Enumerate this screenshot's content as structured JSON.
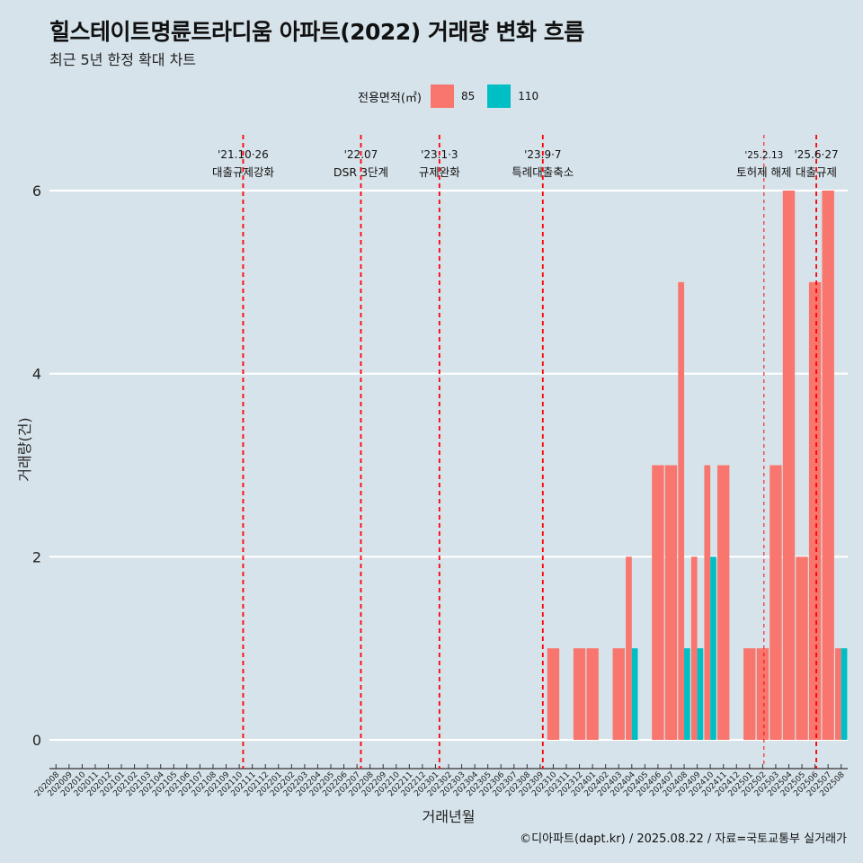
{
  "title": "힐스테이트명륜트라디움 아파트(2022) 거래량 변화 흐름",
  "subtitle": "최근 5년 한정 확대 차트",
  "legend": {
    "title": "전용면적(㎡)",
    "items": [
      {
        "label": "85",
        "color": "#f8766d"
      },
      {
        "label": "110",
        "color": "#00bfc4"
      }
    ]
  },
  "footer": "©디아파트(dapt.kr) / 2025.08.22 / 자료=국토교통부 실거래가",
  "chart_data": {
    "type": "bar",
    "xlabel": "거래년월",
    "ylabel": "거래량(건)",
    "ylim": [
      0,
      6.3
    ],
    "yticks": [
      0,
      2,
      4,
      6
    ],
    "grid": true,
    "legend_position": "top",
    "categories": [
      "202008",
      "202009",
      "202010",
      "202011",
      "202012",
      "202101",
      "202102",
      "202103",
      "202104",
      "202105",
      "202106",
      "202107",
      "202108",
      "202109",
      "202110",
      "202111",
      "202112",
      "202201",
      "202202",
      "202203",
      "202204",
      "202205",
      "202206",
      "202207",
      "202208",
      "202209",
      "202210",
      "202211",
      "202212",
      "202301",
      "202302",
      "202303",
      "202304",
      "202305",
      "202306",
      "202307",
      "202308",
      "202309",
      "202310",
      "202311",
      "202312",
      "202401",
      "202402",
      "202403",
      "202404",
      "202405",
      "202406",
      "202407",
      "202408",
      "202409",
      "202410",
      "202411",
      "202412",
      "202501",
      "202502",
      "202503",
      "202504",
      "202505",
      "202506",
      "202507",
      "202508"
    ],
    "series": [
      {
        "name": "85",
        "color": "#f8766d",
        "values": [
          0,
          0,
          0,
          0,
          0,
          0,
          0,
          0,
          0,
          0,
          0,
          0,
          0,
          0,
          0,
          0,
          0,
          0,
          0,
          0,
          0,
          0,
          0,
          0,
          0,
          0,
          0,
          0,
          0,
          0,
          0,
          0,
          0,
          0,
          0,
          0,
          0,
          0,
          1,
          0,
          1,
          1,
          0,
          1,
          2,
          0,
          3,
          3,
          5,
          2,
          3,
          3,
          0,
          1,
          1,
          3,
          6,
          2,
          5,
          6,
          1
        ]
      },
      {
        "name": "110",
        "color": "#00bfc4",
        "values": [
          0,
          0,
          0,
          0,
          0,
          0,
          0,
          0,
          0,
          0,
          0,
          0,
          0,
          0,
          0,
          0,
          0,
          0,
          0,
          0,
          0,
          0,
          0,
          0,
          0,
          0,
          0,
          0,
          0,
          0,
          0,
          0,
          0,
          0,
          0,
          0,
          0,
          0,
          0,
          0,
          0,
          0,
          0,
          0,
          1,
          0,
          0,
          0,
          1,
          1,
          2,
          0,
          0,
          0,
          0,
          0,
          0,
          0,
          0,
          0,
          1
        ]
      }
    ],
    "annotations": [
      {
        "date": "'21.10·26",
        "label": "대출규제강화",
        "at_index": 14.8,
        "style": "bold"
      },
      {
        "date": "'22.07",
        "label": "DSR 3단계",
        "at_index": 23.8,
        "style": "bold"
      },
      {
        "date": "'23.1·3",
        "label": "규제완화",
        "at_index": 29.8,
        "style": "bold"
      },
      {
        "date": "'23.9·7",
        "label": "특례대출축소",
        "at_index": 37.7,
        "style": "bold"
      },
      {
        "date": "'25.2.13",
        "label": "토허제 해제",
        "at_index": 54.6,
        "style": "thin"
      },
      {
        "date": "'25.6·27",
        "label": "대출규제",
        "at_index": 58.6,
        "style": "bold"
      }
    ]
  }
}
